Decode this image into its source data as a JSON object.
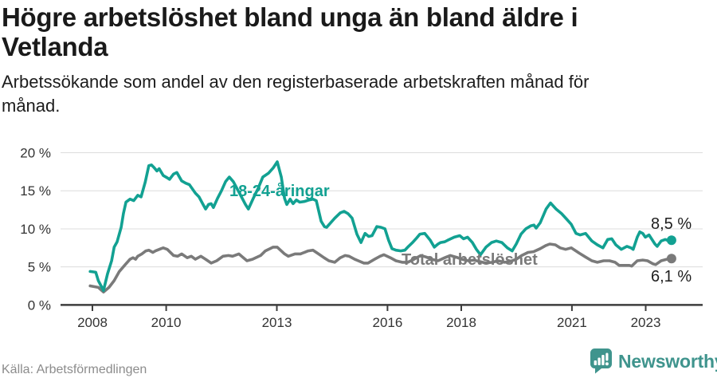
{
  "header": {
    "title_lines": [
      "Högre arbetslöshet bland unga än bland äldre i",
      "Vetlanda"
    ],
    "subtitle_lines": [
      "Arbetssökande som andel av den registerbaserade arbetskraften månad för",
      "månad."
    ]
  },
  "chart_data": {
    "type": "line",
    "title": "Högre arbetslöshet bland unga än bland äldre i Vetlanda",
    "subtitle": "Arbetssökande som andel av den registerbaserade arbetskraften månad för månad.",
    "unit": "%",
    "grid": true,
    "legend_position": "inline-labels",
    "xlim": [
      2007.1,
      2024.55
    ],
    "ylim": [
      0,
      20
    ],
    "x_axis": {
      "values": [
        2008,
        2010,
        2013,
        2016,
        2018,
        2021,
        2023
      ],
      "labels": [
        "2008",
        "2010",
        "2013",
        "2016",
        "2018",
        "2021",
        "2023"
      ]
    },
    "y_axis": {
      "values": [
        0,
        5,
        10,
        15,
        20
      ],
      "labels": [
        "0 %",
        "5 %",
        "10 %",
        "15 %",
        "20 %"
      ]
    },
    "series": [
      {
        "id": "youth",
        "name": "18-24-åringar",
        "color": "#12a192",
        "end_label": "8,5 %",
        "end_value": 8.5,
        "points": [
          [
            2007.94,
            4.4
          ],
          [
            2008.09,
            4.3
          ],
          [
            2008.16,
            3.2
          ],
          [
            2008.3,
            1.9
          ],
          [
            2008.41,
            4.1
          ],
          [
            2008.52,
            5.8
          ],
          [
            2008.59,
            7.6
          ],
          [
            2008.67,
            8.3
          ],
          [
            2008.78,
            10.2
          ],
          [
            2008.84,
            12
          ],
          [
            2008.91,
            13.5
          ],
          [
            2009.02,
            13.9
          ],
          [
            2009.12,
            13.7
          ],
          [
            2009.23,
            14.4
          ],
          [
            2009.32,
            14.2
          ],
          [
            2009.43,
            16.1
          ],
          [
            2009.53,
            18.3
          ],
          [
            2009.6,
            18.4
          ],
          [
            2009.66,
            18.1
          ],
          [
            2009.75,
            17.6
          ],
          [
            2009.81,
            17.9
          ],
          [
            2009.92,
            17
          ],
          [
            2010.03,
            16.7
          ],
          [
            2010.09,
            16.5
          ],
          [
            2010.2,
            17.2
          ],
          [
            2010.29,
            17.4
          ],
          [
            2010.42,
            16.3
          ],
          [
            2010.53,
            16
          ],
          [
            2010.63,
            15.8
          ],
          [
            2010.79,
            14.7
          ],
          [
            2010.89,
            14.2
          ],
          [
            2011,
            13.2
          ],
          [
            2011.07,
            12.6
          ],
          [
            2011.15,
            13.2
          ],
          [
            2011.22,
            13.3
          ],
          [
            2011.28,
            12.8
          ],
          [
            2011.39,
            14
          ],
          [
            2011.5,
            15
          ],
          [
            2011.61,
            16.2
          ],
          [
            2011.71,
            16.8
          ],
          [
            2011.82,
            16.2
          ],
          [
            2011.93,
            15.2
          ],
          [
            2012.04,
            14.2
          ],
          [
            2012.15,
            13.2
          ],
          [
            2012.23,
            12.6
          ],
          [
            2012.36,
            14
          ],
          [
            2012.49,
            15.3
          ],
          [
            2012.62,
            16.8
          ],
          [
            2012.77,
            17.3
          ],
          [
            2012.9,
            18
          ],
          [
            2013.01,
            18.8
          ],
          [
            2013.12,
            16.8
          ],
          [
            2013.21,
            14
          ],
          [
            2013.27,
            13.2
          ],
          [
            2013.36,
            13.9
          ],
          [
            2013.44,
            13.3
          ],
          [
            2013.53,
            13.8
          ],
          [
            2013.62,
            13.5
          ],
          [
            2013.75,
            13.6
          ],
          [
            2013.88,
            13.8
          ],
          [
            2013.98,
            13.9
          ],
          [
            2014.07,
            13.7
          ],
          [
            2014.2,
            11
          ],
          [
            2014.29,
            10.3
          ],
          [
            2014.35,
            10.2
          ],
          [
            2014.46,
            10.8
          ],
          [
            2014.57,
            11.4
          ],
          [
            2014.72,
            12.1
          ],
          [
            2014.82,
            12.3
          ],
          [
            2014.93,
            12
          ],
          [
            2015.04,
            11.4
          ],
          [
            2015.17,
            9.3
          ],
          [
            2015.28,
            8.2
          ],
          [
            2015.39,
            9.4
          ],
          [
            2015.49,
            9
          ],
          [
            2015.58,
            9.1
          ],
          [
            2015.71,
            10.3
          ],
          [
            2015.82,
            10.2
          ],
          [
            2015.93,
            10
          ],
          [
            2016.03,
            8.5
          ],
          [
            2016.12,
            7.4
          ],
          [
            2016.23,
            7.2
          ],
          [
            2016.36,
            7.1
          ],
          [
            2016.47,
            7.2
          ],
          [
            2016.57,
            7.7
          ],
          [
            2016.68,
            8.2
          ],
          [
            2016.79,
            8.8
          ],
          [
            2016.88,
            9.3
          ],
          [
            2017.01,
            9.4
          ],
          [
            2017.16,
            8.5
          ],
          [
            2017.27,
            7.6
          ],
          [
            2017.37,
            8
          ],
          [
            2017.44,
            8.2
          ],
          [
            2017.55,
            8.3
          ],
          [
            2017.63,
            8.5
          ],
          [
            2017.81,
            8.9
          ],
          [
            2017.96,
            9.1
          ],
          [
            2018.06,
            8.7
          ],
          [
            2018.17,
            8.9
          ],
          [
            2018.3,
            8.2
          ],
          [
            2018.41,
            7.3
          ],
          [
            2018.52,
            6.6
          ],
          [
            2018.67,
            7.6
          ],
          [
            2018.82,
            8.2
          ],
          [
            2018.95,
            8.4
          ],
          [
            2019.1,
            8.2
          ],
          [
            2019.25,
            7.5
          ],
          [
            2019.38,
            7.1
          ],
          [
            2019.49,
            8
          ],
          [
            2019.62,
            9.3
          ],
          [
            2019.75,
            10
          ],
          [
            2019.89,
            10.4
          ],
          [
            2019.97,
            10.5
          ],
          [
            2020.03,
            10.1
          ],
          [
            2020.14,
            10.8
          ],
          [
            2020.3,
            12.6
          ],
          [
            2020.42,
            13.4
          ],
          [
            2020.57,
            12.6
          ],
          [
            2020.72,
            12
          ],
          [
            2020.87,
            11.2
          ],
          [
            2020.98,
            10.6
          ],
          [
            2021.11,
            9.4
          ],
          [
            2021.22,
            9.2
          ],
          [
            2021.37,
            9.4
          ],
          [
            2021.54,
            8.4
          ],
          [
            2021.69,
            7.9
          ],
          [
            2021.84,
            7.5
          ],
          [
            2021.97,
            8.6
          ],
          [
            2022.08,
            8.7
          ],
          [
            2022.19,
            7.9
          ],
          [
            2022.34,
            7.3
          ],
          [
            2022.49,
            7.7
          ],
          [
            2022.6,
            7.5
          ],
          [
            2022.66,
            7.3
          ],
          [
            2022.77,
            8.9
          ],
          [
            2022.84,
            9.6
          ],
          [
            2022.92,
            9.4
          ],
          [
            2022.99,
            8.9
          ],
          [
            2023.09,
            9.2
          ],
          [
            2023.25,
            8
          ],
          [
            2023.31,
            7.7
          ],
          [
            2023.42,
            8.4
          ],
          [
            2023.53,
            8.6
          ],
          [
            2023.64,
            8.4
          ],
          [
            2023.7,
            8.5
          ]
        ]
      },
      {
        "id": "total",
        "name": "Total arbetslöshet",
        "color": "#7a7a7a",
        "end_label": "6,1 %",
        "end_value": 6.1,
        "points": [
          [
            2007.94,
            2.5
          ],
          [
            2008.16,
            2.3
          ],
          [
            2008.3,
            1.7
          ],
          [
            2008.45,
            2.3
          ],
          [
            2008.59,
            3.2
          ],
          [
            2008.73,
            4.4
          ],
          [
            2008.89,
            5.3
          ],
          [
            2009.02,
            6
          ],
          [
            2009.1,
            6.2
          ],
          [
            2009.17,
            6
          ],
          [
            2009.23,
            6.4
          ],
          [
            2009.34,
            6.7
          ],
          [
            2009.45,
            7.1
          ],
          [
            2009.53,
            7.2
          ],
          [
            2009.64,
            6.9
          ],
          [
            2009.71,
            7.1
          ],
          [
            2009.86,
            7.4
          ],
          [
            2009.92,
            7.5
          ],
          [
            2010.03,
            7.3
          ],
          [
            2010.2,
            6.5
          ],
          [
            2010.31,
            6.4
          ],
          [
            2010.42,
            6.7
          ],
          [
            2010.57,
            6.2
          ],
          [
            2010.68,
            6.4
          ],
          [
            2010.79,
            6
          ],
          [
            2010.94,
            6.4
          ],
          [
            2011.07,
            6
          ],
          [
            2011.22,
            5.5
          ],
          [
            2011.37,
            5.8
          ],
          [
            2011.54,
            6.4
          ],
          [
            2011.69,
            6.5
          ],
          [
            2011.8,
            6.4
          ],
          [
            2011.97,
            6.7
          ],
          [
            2012.19,
            5.8
          ],
          [
            2012.34,
            6
          ],
          [
            2012.56,
            6.5
          ],
          [
            2012.69,
            7.1
          ],
          [
            2012.9,
            7.6
          ],
          [
            2013.01,
            7.6
          ],
          [
            2013.21,
            6.7
          ],
          [
            2013.31,
            6.4
          ],
          [
            2013.49,
            6.7
          ],
          [
            2013.64,
            6.7
          ],
          [
            2013.85,
            7.1
          ],
          [
            2013.98,
            7.2
          ],
          [
            2014.13,
            6.7
          ],
          [
            2014.28,
            6.2
          ],
          [
            2014.41,
            5.8
          ],
          [
            2014.57,
            5.6
          ],
          [
            2014.72,
            6.2
          ],
          [
            2014.85,
            6.5
          ],
          [
            2014.96,
            6.4
          ],
          [
            2015.11,
            6
          ],
          [
            2015.21,
            5.8
          ],
          [
            2015.36,
            5.5
          ],
          [
            2015.47,
            5.5
          ],
          [
            2015.65,
            6
          ],
          [
            2015.8,
            6.4
          ],
          [
            2015.9,
            6.6
          ],
          [
            2016.08,
            6.2
          ],
          [
            2016.23,
            5.8
          ],
          [
            2016.4,
            5.6
          ],
          [
            2016.55,
            5.6
          ],
          [
            2016.72,
            6
          ],
          [
            2016.9,
            6.5
          ],
          [
            2017.05,
            6.3
          ],
          [
            2017.2,
            6
          ],
          [
            2017.37,
            5.8
          ],
          [
            2017.55,
            6.2
          ],
          [
            2017.7,
            6.5
          ],
          [
            2017.85,
            6.3
          ],
          [
            2018.02,
            6
          ],
          [
            2018.19,
            5.8
          ],
          [
            2018.34,
            5.9
          ],
          [
            2018.5,
            5.7
          ],
          [
            2018.67,
            5.5
          ],
          [
            2018.84,
            5.6
          ],
          [
            2019,
            5.8
          ],
          [
            2019.17,
            5.6
          ],
          [
            2019.32,
            5.7
          ],
          [
            2019.49,
            6
          ],
          [
            2019.64,
            6.5
          ],
          [
            2019.81,
            6.9
          ],
          [
            2019.96,
            7
          ],
          [
            2020.14,
            7.4
          ],
          [
            2020.29,
            7.8
          ],
          [
            2020.4,
            8
          ],
          [
            2020.55,
            7.9
          ],
          [
            2020.68,
            7.5
          ],
          [
            2020.83,
            7.3
          ],
          [
            2020.98,
            7.5
          ],
          [
            2021.2,
            6.8
          ],
          [
            2021.37,
            6.3
          ],
          [
            2021.54,
            5.8
          ],
          [
            2021.69,
            5.6
          ],
          [
            2021.86,
            5.8
          ],
          [
            2022.02,
            5.8
          ],
          [
            2022.17,
            5.6
          ],
          [
            2022.28,
            5.2
          ],
          [
            2022.41,
            5.2
          ],
          [
            2022.56,
            5.2
          ],
          [
            2022.62,
            5.1
          ],
          [
            2022.77,
            5.8
          ],
          [
            2022.92,
            5.9
          ],
          [
            2023.05,
            5.8
          ],
          [
            2023.2,
            5.4
          ],
          [
            2023.27,
            5.3
          ],
          [
            2023.42,
            5.8
          ],
          [
            2023.57,
            6
          ],
          [
            2023.7,
            6.1
          ]
        ]
      }
    ]
  },
  "footer": {
    "source": "Källa: Arbetsförmedlingen",
    "brand": "Newsworthy",
    "brand_color": "#3f948d"
  }
}
